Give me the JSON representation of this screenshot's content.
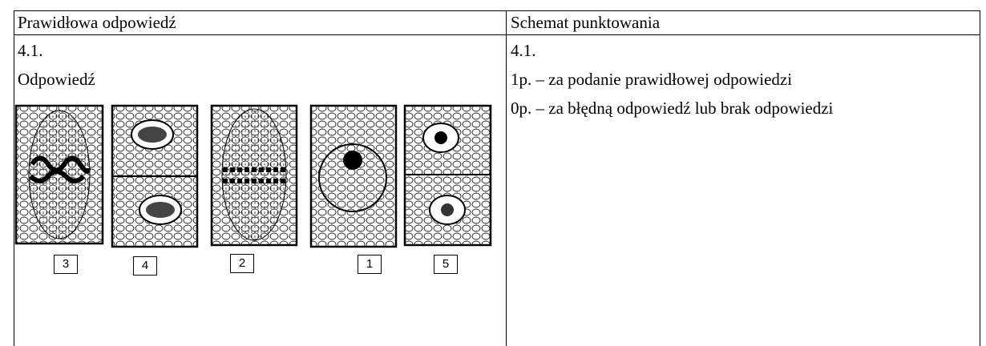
{
  "table": {
    "header": [
      "Prawidłowa odpowiedź",
      "Schemat punktowania"
    ],
    "left": {
      "number": "4.1.",
      "label": "Odpowiedź",
      "cell_labels": [
        "3",
        "4",
        "2",
        "1",
        "5"
      ]
    },
    "right": {
      "number": "4.1.",
      "lines": [
        "1p. – za podanie prawidłowej odpowiedzi",
        "0p. – za błędną odpowiedź lub brak odpowiedzi"
      ]
    }
  }
}
